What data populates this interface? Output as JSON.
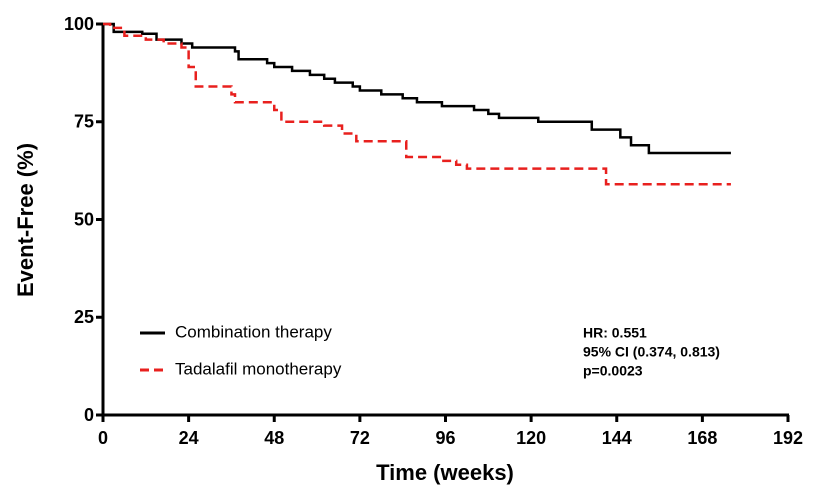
{
  "chart_data": {
    "type": "step",
    "xlabel": "Time (weeks)",
    "ylabel": "Event-Free (%)",
    "xlim": [
      0,
      192
    ],
    "xticks": [
      0,
      24,
      48,
      72,
      96,
      120,
      144,
      168,
      192
    ],
    "ylim": [
      0,
      100
    ],
    "yticks": [
      0,
      25,
      50,
      75,
      100
    ],
    "series": [
      {
        "name": "Combination therapy",
        "color": "#000000",
        "dash": false,
        "x": [
          0,
          3,
          11,
          15,
          22,
          25,
          37,
          38,
          46,
          48,
          53,
          58,
          62,
          65,
          70,
          72,
          78,
          84,
          88,
          95,
          104,
          108,
          111,
          122,
          137,
          145,
          148,
          153,
          176
        ],
        "values": [
          100,
          98,
          97.5,
          96,
          95,
          94,
          93,
          91,
          90,
          89,
          88,
          87,
          86,
          85,
          84,
          83,
          82,
          81,
          80,
          79,
          78,
          77,
          76,
          75,
          73,
          71,
          69,
          67,
          67
        ]
      },
      {
        "name": "Tadalafil monotherapy",
        "color": "#e8201e",
        "dash": true,
        "x": [
          0,
          2,
          6,
          12,
          17,
          22,
          24,
          26,
          36,
          37,
          48,
          50,
          62,
          67,
          71,
          85,
          95,
          99,
          102,
          141,
          176
        ],
        "values": [
          100,
          99,
          97,
          96,
          95,
          94,
          89,
          84,
          82,
          80,
          78,
          75,
          74,
          72,
          70,
          66,
          65,
          64,
          63,
          59,
          59
        ]
      }
    ],
    "annotations": [
      "HR: 0.551",
      "95% CI (0.374, 0.813)",
      "p=0.0023"
    ]
  }
}
